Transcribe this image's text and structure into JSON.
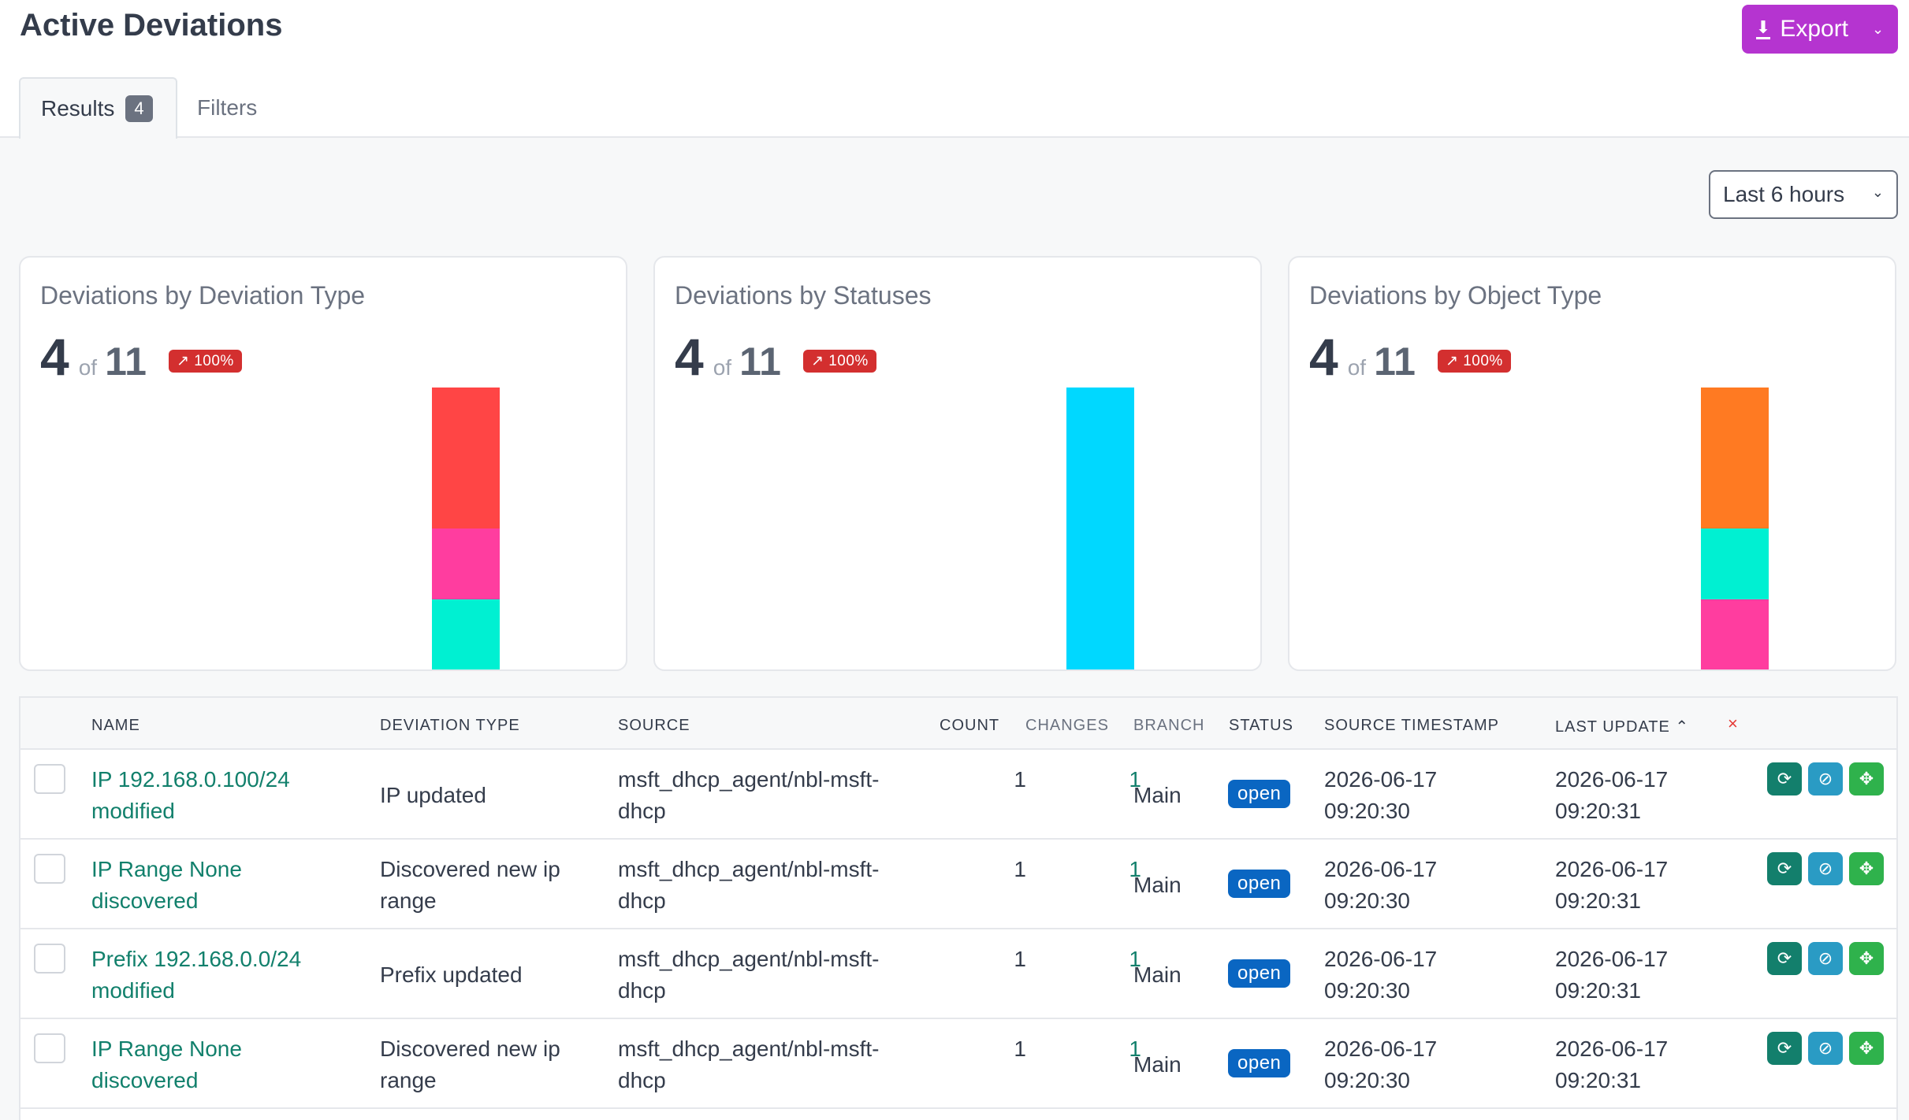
{
  "header": {
    "title": "Active Deviations",
    "export_label": "Export"
  },
  "tabs": [
    {
      "label": "Results",
      "count": "4"
    },
    {
      "label": "Filters"
    }
  ],
  "time_range": {
    "selected": "Last 6 hours"
  },
  "cards": [
    {
      "title": "Deviations by Deviation Type",
      "value": "4",
      "of_label": "of",
      "total": "11",
      "trend": "↗ 100%",
      "segments": [
        {
          "color": "#ff4545",
          "value": 2
        },
        {
          "color": "#ff3d9f",
          "value": 1
        },
        {
          "color": "#00f0d2",
          "value": 1
        }
      ]
    },
    {
      "title": "Deviations by Statuses",
      "value": "4",
      "of_label": "of",
      "total": "11",
      "trend": "↗ 100%",
      "segments": [
        {
          "color": "#00d8ff",
          "value": 4
        }
      ]
    },
    {
      "title": "Deviations by Object Type",
      "value": "4",
      "of_label": "of",
      "total": "11",
      "trend": "↗ 100%",
      "segments": [
        {
          "color": "#ff7a22",
          "value": 2
        },
        {
          "color": "#00f0d2",
          "value": 1
        },
        {
          "color": "#ff3d9f",
          "value": 1
        }
      ]
    }
  ],
  "table": {
    "columns": {
      "name": "NAME",
      "deviation_type": "DEVIATION TYPE",
      "source": "SOURCE",
      "count": "COUNT",
      "changes": "CHANGES",
      "branch": "BRANCH",
      "status": "STATUS",
      "source_timestamp": "SOURCE TIMESTAMP",
      "last_update": "LAST UPDATE ⌃",
      "clear": "×"
    },
    "rows": [
      {
        "name": [
          "IP 192.168.0.100/24",
          "modified"
        ],
        "deviation_type": [
          "IP updated"
        ],
        "source": [
          "msft_dhcp_agent/nbl-msft-",
          "dhcp"
        ],
        "count": "1",
        "changes": "1",
        "branch": "Main",
        "status": "open",
        "source_timestamp": [
          "2026-06-17",
          "09:20:30"
        ],
        "last_update": [
          "2026-06-17",
          "09:20:31"
        ]
      },
      {
        "name": [
          "IP Range None",
          "discovered"
        ],
        "deviation_type": [
          "Discovered new ip",
          "range"
        ],
        "source": [
          "msft_dhcp_agent/nbl-msft-",
          "dhcp"
        ],
        "count": "1",
        "changes": "1",
        "branch": "Main",
        "status": "open",
        "source_timestamp": [
          "2026-06-17",
          "09:20:30"
        ],
        "last_update": [
          "2026-06-17",
          "09:20:31"
        ]
      },
      {
        "name": [
          "Prefix 192.168.0.0/24",
          "modified"
        ],
        "deviation_type": [
          "Prefix updated"
        ],
        "source": [
          "msft_dhcp_agent/nbl-msft-",
          "dhcp"
        ],
        "count": "1",
        "changes": "1",
        "branch": "Main",
        "status": "open",
        "source_timestamp": [
          "2026-06-17",
          "09:20:30"
        ],
        "last_update": [
          "2026-06-17",
          "09:20:31"
        ]
      },
      {
        "name": [
          "IP Range None",
          "discovered"
        ],
        "deviation_type": [
          "Discovered new ip",
          "range"
        ],
        "source": [
          "msft_dhcp_agent/nbl-msft-",
          "dhcp"
        ],
        "count": "1",
        "changes": "1",
        "branch": "Main",
        "status": "open",
        "source_timestamp": [
          "2026-06-17",
          "09:20:30"
        ],
        "last_update": [
          "2026-06-17",
          "09:20:31"
        ]
      }
    ],
    "row_actions": [
      "sync-icon",
      "hide-icon",
      "apply-icon"
    ]
  }
}
